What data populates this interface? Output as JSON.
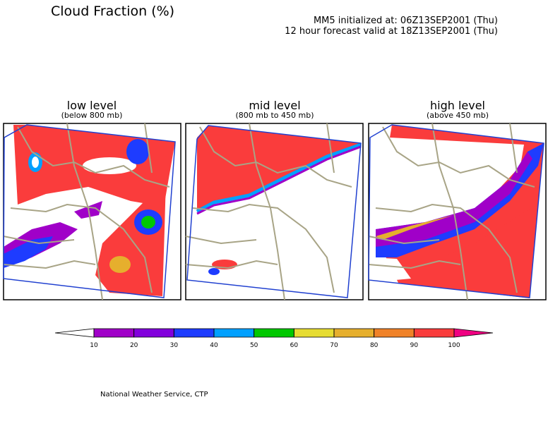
{
  "title": "Cloud Fraction (%)",
  "header": {
    "line1": "MM5 initialized at: 06Z13SEP2001 (Thu)",
    "line2": "12 hour forecast valid at 18Z13SEP2001 (Thu)"
  },
  "panels": [
    {
      "title": "low level",
      "subtitle": "(below 800 mb)"
    },
    {
      "title": "mid level",
      "subtitle": "(800 mb to 450 mb)"
    },
    {
      "title": "high level",
      "subtitle": "(above 450 mb)"
    }
  ],
  "colorbar": {
    "ticks": [
      10,
      20,
      30,
      40,
      50,
      60,
      70,
      80,
      90,
      100
    ],
    "colors": [
      "#ffffff",
      "#a000c8",
      "#8200dc",
      "#1e3cff",
      "#00a0ff",
      "#00c800",
      "#e6dc32",
      "#e6af2d",
      "#f08228",
      "#fa3c3c",
      "#f00082"
    ]
  },
  "footer": "National Weather Service, CTP"
}
